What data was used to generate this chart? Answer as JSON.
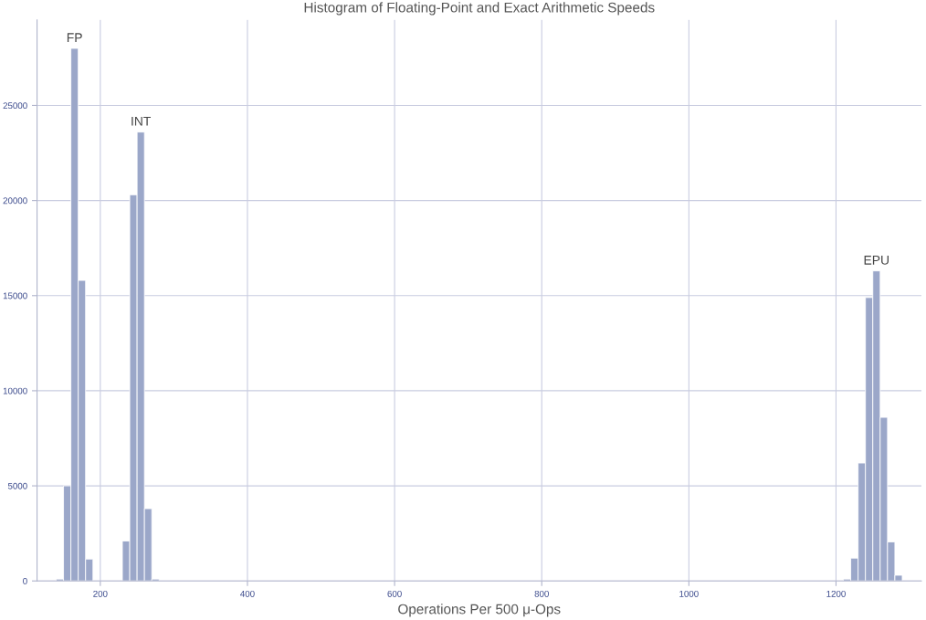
{
  "chart_data": {
    "type": "histogram",
    "title": "Histogram of Floating-Point and Exact Arithmetic Speeds",
    "xlabel": "Operations Per 500 μ-Ops",
    "color": "#9ba7c9",
    "bins": [
      140,
      150,
      160,
      170,
      180,
      190,
      230,
      240,
      250,
      260,
      270,
      280,
      1210,
      1220,
      1230,
      1240,
      1250,
      1260,
      1270,
      1280,
      1290
    ],
    "values": [
      100,
      5000,
      28000,
      15800,
      1150,
      0,
      2100,
      20300,
      23600,
      3800,
      100,
      0,
      100,
      1200,
      6200,
      14900,
      16300,
      8600,
      2050,
      300
    ],
    "annotations": [
      {
        "text": "FP",
        "x": 165,
        "y": 28000
      },
      {
        "text": "INT",
        "x": 255,
        "y": 23600
      },
      {
        "text": "EPU",
        "x": 1255,
        "y": 16300
      }
    ],
    "xlim": [
      114,
      1316
    ],
    "xticks": [
      200,
      400,
      600,
      800,
      1000,
      1200
    ],
    "ylim": [
      0,
      29500
    ],
    "yticks": [
      0,
      5000,
      10000,
      15000,
      20000,
      25000
    ],
    "grid": true
  }
}
